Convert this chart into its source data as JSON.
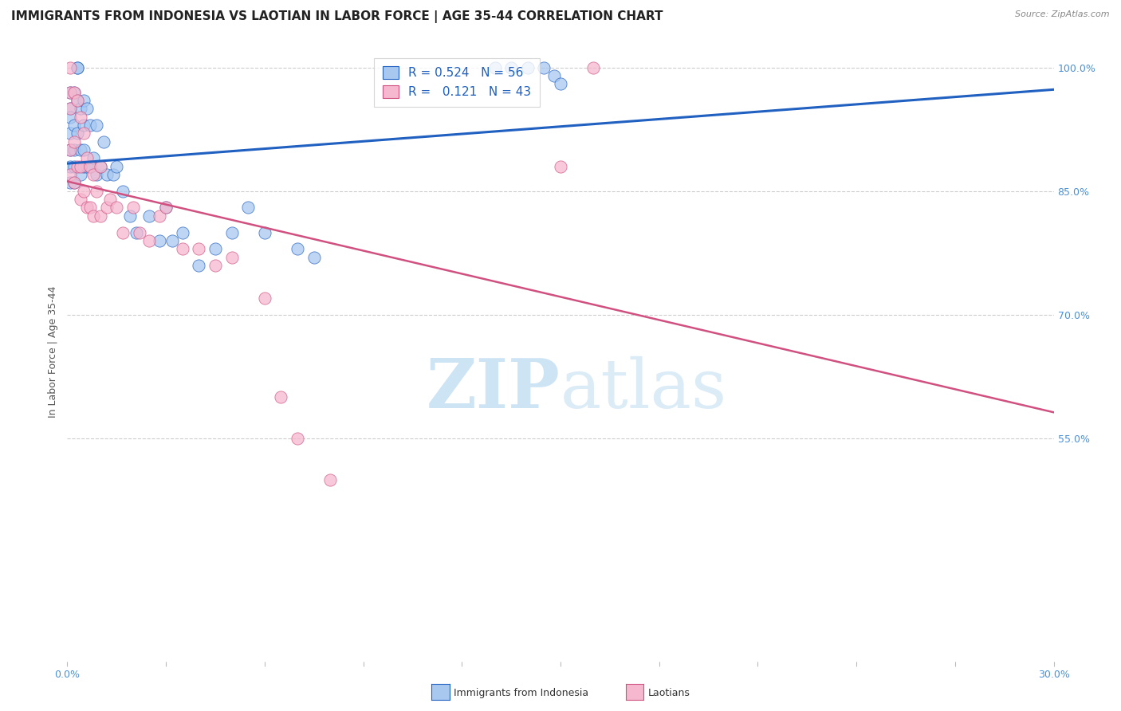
{
  "title": "IMMIGRANTS FROM INDONESIA VS LAOTIAN IN LABOR FORCE | AGE 35-44 CORRELATION CHART",
  "source": "Source: ZipAtlas.com",
  "ylabel": "In Labor Force | Age 35-44",
  "xlim": [
    0.0,
    0.3
  ],
  "ylim": [
    0.28,
    1.03
  ],
  "xticks": [
    0.0,
    0.03,
    0.06,
    0.09,
    0.12,
    0.15,
    0.18,
    0.21,
    0.24,
    0.27,
    0.3
  ],
  "ytick_positions": [
    1.0,
    0.85,
    0.7,
    0.55
  ],
  "ytick_labels": [
    "100.0%",
    "85.0%",
    "70.0%",
    "55.0%"
  ],
  "r_indonesia": 0.524,
  "n_indonesia": 56,
  "r_laotian": 0.121,
  "n_laotian": 43,
  "color_indonesia": "#a8c8f0",
  "color_laotian": "#f5b8ce",
  "line_color_indonesia": "#2060c0",
  "line_color_laotian": "#d05080",
  "watermark_color": "#cde4f5",
  "grid_color": "#cccccc",
  "bg_color": "#ffffff",
  "tick_color": "#4a90d9",
  "title_fontsize": 11,
  "label_fontsize": 9,
  "tick_fontsize": 9,
  "legend_fontsize": 11,
  "indonesia_x": [
    0.001,
    0.001,
    0.001,
    0.001,
    0.001,
    0.001,
    0.001,
    0.002,
    0.002,
    0.002,
    0.002,
    0.002,
    0.003,
    0.003,
    0.003,
    0.003,
    0.004,
    0.004,
    0.004,
    0.005,
    0.005,
    0.005,
    0.005,
    0.006,
    0.006,
    0.007,
    0.007,
    0.008,
    0.009,
    0.009,
    0.01,
    0.011,
    0.012,
    0.014,
    0.015,
    0.017,
    0.019,
    0.021,
    0.025,
    0.028,
    0.03,
    0.032,
    0.035,
    0.04,
    0.045,
    0.05,
    0.055,
    0.06,
    0.07,
    0.075,
    0.13,
    0.135,
    0.14,
    0.145,
    0.148,
    0.15
  ],
  "indonesia_y": [
    0.97,
    0.95,
    0.94,
    0.92,
    0.9,
    0.88,
    0.86,
    0.97,
    0.93,
    0.9,
    0.88,
    0.86,
    1.0,
    1.0,
    0.96,
    0.92,
    0.95,
    0.9,
    0.87,
    0.96,
    0.93,
    0.9,
    0.88,
    0.95,
    0.88,
    0.93,
    0.88,
    0.89,
    0.93,
    0.87,
    0.88,
    0.91,
    0.87,
    0.87,
    0.88,
    0.85,
    0.82,
    0.8,
    0.82,
    0.79,
    0.83,
    0.79,
    0.8,
    0.76,
    0.78,
    0.8,
    0.83,
    0.8,
    0.78,
    0.77,
    1.0,
    1.0,
    1.0,
    1.0,
    0.99,
    0.98
  ],
  "laotian_x": [
    0.001,
    0.001,
    0.001,
    0.001,
    0.001,
    0.002,
    0.002,
    0.002,
    0.003,
    0.003,
    0.004,
    0.004,
    0.004,
    0.005,
    0.005,
    0.006,
    0.006,
    0.007,
    0.007,
    0.008,
    0.008,
    0.009,
    0.01,
    0.01,
    0.012,
    0.013,
    0.015,
    0.017,
    0.02,
    0.022,
    0.025,
    0.028,
    0.03,
    0.035,
    0.04,
    0.045,
    0.05,
    0.06,
    0.065,
    0.07,
    0.08,
    0.15,
    0.16
  ],
  "laotian_y": [
    1.0,
    0.97,
    0.95,
    0.9,
    0.87,
    0.97,
    0.91,
    0.86,
    0.96,
    0.88,
    0.94,
    0.88,
    0.84,
    0.92,
    0.85,
    0.89,
    0.83,
    0.88,
    0.83,
    0.87,
    0.82,
    0.85,
    0.88,
    0.82,
    0.83,
    0.84,
    0.83,
    0.8,
    0.83,
    0.8,
    0.79,
    0.82,
    0.83,
    0.78,
    0.78,
    0.76,
    0.77,
    0.72,
    0.6,
    0.55,
    0.5,
    0.88,
    1.0
  ]
}
